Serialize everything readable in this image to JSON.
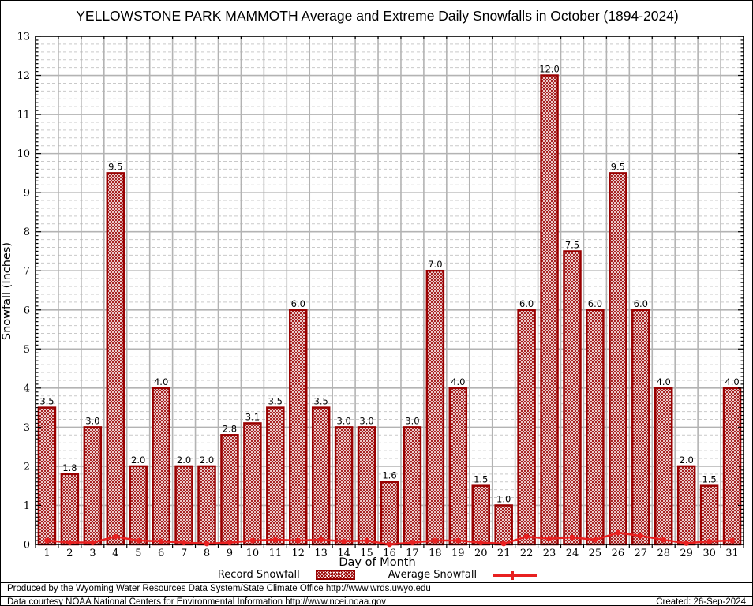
{
  "header": {
    "title": "YELLOWSTONE PARK MAMMOTH Average and Extreme Daily Snowfalls in October (1894-2024)"
  },
  "chart_data": {
    "type": "bar",
    "title": "YELLOWSTONE PARK MAMMOTH Average and Extreme Daily Snowfalls in October (1894-2024)",
    "xlabel": "Day of Month",
    "ylabel": "Snowfall (Inches)",
    "ylim": [
      0,
      13
    ],
    "y_major_step": 1,
    "y_minor_step": 0.2,
    "grid": "on",
    "legend_position": "bottom",
    "categories": [
      1,
      2,
      3,
      4,
      5,
      6,
      7,
      8,
      9,
      10,
      11,
      12,
      13,
      14,
      15,
      16,
      17,
      18,
      19,
      20,
      21,
      22,
      23,
      24,
      25,
      26,
      27,
      28,
      29,
      30,
      31
    ],
    "series": [
      {
        "name": "Record Snowfall",
        "type": "bar",
        "values": [
          3.5,
          1.8,
          3.0,
          9.5,
          2.0,
          4.0,
          2.0,
          2.0,
          2.8,
          3.1,
          3.5,
          6.0,
          3.5,
          3.0,
          3.0,
          1.6,
          3.0,
          7.0,
          4.0,
          1.5,
          1.0,
          6.0,
          12.0,
          7.5,
          6.0,
          9.5,
          6.0,
          4.0,
          2.0,
          1.5,
          4.0
        ]
      },
      {
        "name": "Average Snowfall",
        "type": "line",
        "values": [
          0.1,
          0.05,
          0.05,
          0.2,
          0.1,
          0.08,
          0.05,
          0.02,
          0.05,
          0.1,
          0.12,
          0.1,
          0.12,
          0.08,
          0.1,
          0.0,
          0.05,
          0.1,
          0.1,
          0.05,
          0.02,
          0.2,
          0.15,
          0.18,
          0.12,
          0.3,
          0.22,
          0.12,
          0.03,
          0.08,
          0.1
        ]
      }
    ],
    "colors": {
      "bar_edge": "#990000",
      "bar_hatch": "#990000",
      "avg_line": "#e82020",
      "grid_major": "#b3b3b3",
      "grid_minor": "#c9c9c9",
      "frame": "#000000",
      "text": "#000000"
    }
  },
  "legend": {
    "record_label": "Record Snowfall",
    "average_label": "Average Snowfall"
  },
  "footer": {
    "line1": "Produced by the Wyoming Water Resources Data System/State Climate Office http://www.wrds.uwyo.edu",
    "line2": "Data courtesy NOAA National Centers for Environmental Information http://www.ncei.noaa.gov",
    "created": "Created: 26-Sep-2024"
  }
}
